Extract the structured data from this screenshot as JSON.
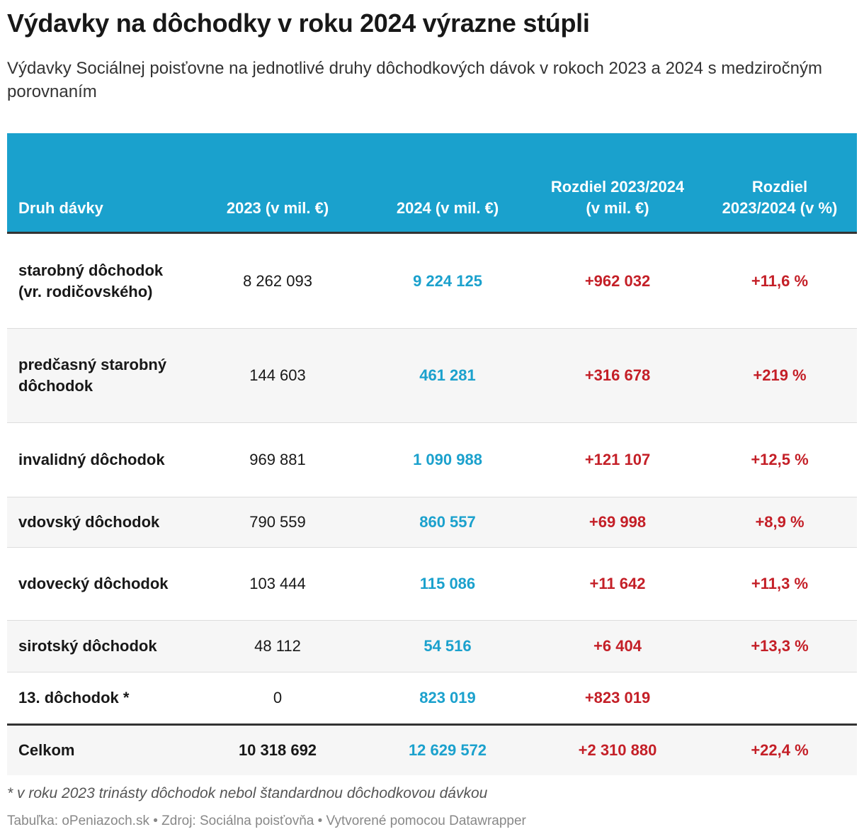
{
  "header": {
    "title": "Výdavky na dôchodky v roku 2024 výrazne stúpli",
    "subtitle": "Výdavky Sociálnej poisťovne na jednotlivé druhy dôchodkových dávok v rokoch 2023 a 2024 s medziročným porovnaním"
  },
  "table": {
    "columns": [
      "Druh dávky",
      "2023 (v mil. €)",
      "2024 (v mil. €)",
      "Rozdiel 2023/2024 (v mil. €)",
      "Rozdiel 2023/2024 (v %)"
    ],
    "rows": [
      [
        "starobný dôchodok (vr. rodičovského)",
        "8 262 093",
        "9 224 125",
        "+962 032",
        "+11,6 %"
      ],
      [
        "predčasný starobný dôchodok",
        "144 603",
        "461 281",
        "+316 678",
        "+219 %"
      ],
      [
        "invalidný dôchodok",
        "969 881",
        "1 090 988",
        "+121 107",
        "+12,5 %"
      ],
      [
        "vdovský dôchodok",
        "790 559",
        "860 557",
        "+69 998",
        "+8,9 %"
      ],
      [
        "vdovecký dôchodok",
        "103 444",
        "115 086",
        "+11 642",
        "+11,3 %"
      ],
      [
        "sirotský dôchodok",
        "48 112",
        "54 516",
        "+6 404",
        "+13,3 %"
      ],
      [
        "13. dôchodok *",
        "0",
        "823 019",
        "+823 019"
      ]
    ],
    "total": [
      "Celkom",
      "10 318 692",
      "12 629 572",
      "+2 310 880",
      "+22,4 %"
    ]
  },
  "footer": {
    "note": "* v roku 2023 trinásty dôchodok nebol štandardnou dôchodkovou dávkou",
    "source": "Tabuľka: oPeniazoch.sk • Zdroj: Sociálna poisťovňa • Vytvorené pomocou Datawrapper"
  }
}
